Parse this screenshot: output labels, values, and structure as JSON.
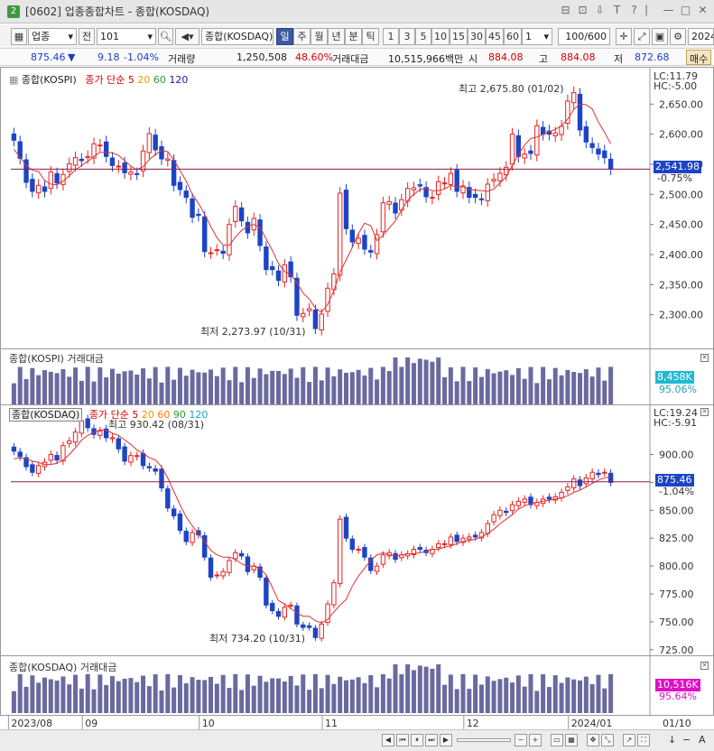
{
  "window": {
    "number": "2",
    "title": "[0602] 업종종합차트 - 종합(KOSDAQ)",
    "icons": [
      "window-icon",
      "window-icon",
      "save-icon",
      "text-icon",
      "help-icon",
      "pin-icon",
      "minimize-icon",
      "restore-icon",
      "close-icon"
    ]
  },
  "toolbar": {
    "market_select": "업종",
    "search_prefix": "전",
    "code_value": "101",
    "market_name": "종합(KOSDAQ)",
    "periods": [
      "일",
      "주",
      "월",
      "년",
      "분",
      "틱"
    ],
    "active_period": "일",
    "intervals": [
      "1",
      "3",
      "5",
      "10",
      "15",
      "30",
      "45",
      "60"
    ],
    "interval_value": "1",
    "bar_count": "100/600",
    "date_value": "2024"
  },
  "quote": {
    "price": "875.46",
    "change_arrow": "▼",
    "change": "9.18",
    "change_pct": "-1.04%",
    "volume_label": "거래량",
    "volume": "1,250,508",
    "volume_pct": "48.60%",
    "amount_label": "거래대금",
    "amount": "10,515,966백만",
    "open_label": "시",
    "open": "884.08",
    "high_label": "고",
    "high": "884.08",
    "low_label": "저",
    "low": "872.68",
    "right_btn": "매수"
  },
  "panes": {
    "kospi": {
      "title": "종합(KOSPI)",
      "ma_label": "종가 단순",
      "ma_periods": [
        "5",
        "20",
        "60",
        "120"
      ],
      "lc": "LC:11.79",
      "hc": "HC:-5.00",
      "high_note": "최고 2,675.80 (01/02)",
      "low_note": "최저 2,273.97 (10/31)",
      "current": "2,541.98",
      "current_pct": "-0.75%"
    },
    "kospi_vol": {
      "title": "종합(KOSPI) 거래대금",
      "value": "8,458K",
      "pct": "95.06%"
    },
    "kosdaq": {
      "title": "종합(KOSDAQ)",
      "ma_label": "종가 단순",
      "ma_periods": [
        "5",
        "20",
        "60",
        "90",
        "120"
      ],
      "lc": "LC:19.24",
      "hc": "HC:-5.91",
      "high_note": "최고 930.42 (08/31)",
      "low_note": "최저 734.20 (10/31)",
      "current": "875.46",
      "current_pct": "-1.04%"
    },
    "kosdaq_vol": {
      "title": "종합(KOSDAQ) 거래대금",
      "value": "10,516K",
      "pct": "95.64%"
    }
  },
  "axes": {
    "kospi_ticks": [
      "2,650.00",
      "2,600.00",
      "2,550.00",
      "2,500.00",
      "2,450.00",
      "2,400.00",
      "2,350.00",
      "2,300.00"
    ],
    "kosdaq_ticks": [
      "900.00",
      "875.00",
      "850.00",
      "825.00",
      "800.00",
      "775.00",
      "750.00",
      "725.00"
    ],
    "date_ticks": [
      "2023/08",
      "09",
      "10",
      "11",
      "12",
      "2024/01"
    ],
    "date_right": "01/10"
  },
  "colors": {
    "up": "#e8231e",
    "down": "#1c44c6",
    "ma5": "#e03030",
    "ma20": "#f0b000",
    "ma60": "#2e9a2e",
    "ma90": "#ff7a00",
    "ma120": "#1a1aa0",
    "volume": "#6a6aa0",
    "hline": "#8b1a4a"
  },
  "chart_data": [
    {
      "type": "candlestick",
      "name": "종합(KOSPI)",
      "ylim": [
        2250,
        2700
      ],
      "x": [
        "2023-08-16",
        "2023-08-17",
        "2023-08-18",
        "2023-08-21",
        "2023-08-22",
        "2023-08-23",
        "2023-08-24",
        "2023-08-25",
        "2023-08-28",
        "2023-08-29",
        "2023-08-30",
        "2023-08-31",
        "2023-09-01",
        "2023-09-04",
        "2023-09-05",
        "2023-09-06",
        "2023-09-07",
        "2023-09-08",
        "2023-09-11",
        "2023-09-12",
        "2023-09-13",
        "2023-09-14",
        "2023-09-15",
        "2023-09-18",
        "2023-09-19",
        "2023-09-20",
        "2023-09-21",
        "2023-09-22",
        "2023-09-25",
        "2023-09-26",
        "2023-09-27",
        "2023-10-04",
        "2023-10-05",
        "2023-10-06",
        "2023-10-10",
        "2023-10-11",
        "2023-10-12",
        "2023-10-13",
        "2023-10-16",
        "2023-10-17",
        "2023-10-18",
        "2023-10-19",
        "2023-10-20",
        "2023-10-23",
        "2023-10-24",
        "2023-10-25",
        "2023-10-26",
        "2023-10-27",
        "2023-10-30",
        "2023-10-31",
        "2023-11-01",
        "2023-11-02",
        "2023-11-03",
        "2023-11-06",
        "2023-11-07",
        "2023-11-08",
        "2023-11-09",
        "2023-11-10",
        "2023-11-13",
        "2023-11-14",
        "2023-11-15",
        "2023-11-16",
        "2023-11-17",
        "2023-11-20",
        "2023-11-21",
        "2023-11-22",
        "2023-11-23",
        "2023-11-24",
        "2023-11-27",
        "2023-11-28",
        "2023-11-29",
        "2023-11-30",
        "2023-12-01",
        "2023-12-04",
        "2023-12-05",
        "2023-12-06",
        "2023-12-07",
        "2023-12-08",
        "2023-12-11",
        "2023-12-12",
        "2023-12-13",
        "2023-12-14",
        "2023-12-15",
        "2023-12-18",
        "2023-12-19",
        "2023-12-20",
        "2023-12-21",
        "2023-12-22",
        "2023-12-26",
        "2023-12-27",
        "2023-12-28",
        "2024-01-02",
        "2024-01-03",
        "2024-01-04",
        "2024-01-05",
        "2024-01-08",
        "2024-01-09",
        "2024-01-10"
      ],
      "close": [
        2590,
        2560,
        2520,
        2505,
        2515,
        2505,
        2537,
        2519,
        2533,
        2551,
        2561,
        2556,
        2563,
        2584,
        2582,
        2563,
        2548,
        2547,
        2536,
        2537,
        2534,
        2572,
        2601,
        2574,
        2559,
        2559,
        2515,
        2508,
        2495,
        2462,
        2465,
        2405,
        2403,
        2408,
        2402,
        2450,
        2480,
        2456,
        2436,
        2460,
        2415,
        2375,
        2375,
        2357,
        2383,
        2363,
        2299,
        2302,
        2310,
        2277,
        2301,
        2344,
        2368,
        2502,
        2443,
        2421,
        2427,
        2409,
        2404,
        2433,
        2486,
        2488,
        2469,
        2491,
        2510,
        2511,
        2514,
        2496,
        2495,
        2521,
        2519,
        2535,
        2505,
        2514,
        2495,
        2495,
        2492,
        2517,
        2525,
        2535,
        2545,
        2600,
        2563,
        2567,
        2568,
        2614,
        2600,
        2600,
        2602,
        2613,
        2655,
        2669,
        2607,
        2587,
        2578,
        2567,
        2561,
        2542
      ],
      "ma5": [
        2575,
        2562,
        2548,
        2540,
        2538,
        2523,
        2517,
        2516,
        2522,
        2531,
        2541,
        2548,
        2555,
        2563,
        2570,
        2570,
        2569,
        2565,
        2556,
        2547,
        2541,
        2546,
        2558,
        2566,
        2573,
        2571,
        2557,
        2540,
        2522,
        2500,
        2485,
        2467,
        2447,
        2428,
        2416,
        2415,
        2429,
        2440,
        2447,
        2450,
        2445,
        2426,
        2407,
        2385,
        2372,
        2367,
        2353,
        2336,
        2326,
        2311,
        2304,
        2317,
        2340,
        2371,
        2391,
        2412,
        2435,
        2452,
        2448,
        2423,
        2432,
        2444,
        2456,
        2474,
        2490,
        2500,
        2508,
        2510,
        2506,
        2506,
        2509,
        2515,
        2512,
        2513,
        2508,
        2507,
        2506,
        2505,
        2509,
        2519,
        2529,
        2548,
        2566,
        2582,
        2593,
        2595,
        2600,
        2604,
        2608,
        2614,
        2625,
        2641,
        2650,
        2649,
        2642,
        2620,
        2603,
        2584
      ]
    },
    {
      "type": "candlestick",
      "name": "종합(KOSDAQ)",
      "ylim": [
        720,
        940
      ],
      "x_same_as": "종합(KOSPI)",
      "close": [
        903,
        898,
        889,
        884,
        890,
        893,
        900,
        895,
        908,
        912,
        920,
        930,
        924,
        918,
        921,
        915,
        915,
        905,
        894,
        899,
        899,
        890,
        888,
        885,
        870,
        852,
        845,
        832,
        822,
        830,
        828,
        808,
        790,
        792,
        795,
        805,
        812,
        809,
        795,
        800,
        790,
        765,
        760,
        755,
        763,
        765,
        748,
        745,
        745,
        736,
        748,
        766,
        785,
        842,
        825,
        815,
        815,
        808,
        796,
        800,
        810,
        812,
        806,
        810,
        811,
        815,
        815,
        812,
        815,
        820,
        820,
        826,
        822,
        825,
        826,
        826,
        830,
        838,
        846,
        850,
        848,
        855,
        858,
        860,
        855,
        857,
        860,
        860,
        862,
        866,
        871,
        878,
        872,
        879,
        884,
        882,
        884,
        875
      ],
      "ma5": [
        896,
        897,
        896,
        894,
        893,
        891,
        891,
        892,
        895,
        900,
        906,
        913,
        917,
        920,
        922,
        922,
        919,
        917,
        913,
        909,
        904,
        901,
        897,
        895,
        889,
        879,
        867,
        855,
        844,
        836,
        829,
        822,
        814,
        810,
        808,
        808,
        806,
        802,
        800,
        800,
        798,
        792,
        781,
        769,
        766,
        762,
        758,
        755,
        755,
        751,
        749,
        752,
        759,
        765,
        770,
        782,
        791,
        798,
        805,
        810,
        812,
        810,
        809,
        810,
        811,
        811,
        812,
        813,
        815,
        815,
        817,
        818,
        820,
        822,
        823,
        824,
        826,
        829,
        833,
        838,
        842,
        846,
        851,
        854,
        856,
        857,
        858,
        859,
        860,
        861,
        863,
        866,
        868,
        871,
        874,
        877,
        879,
        880
      ]
    }
  ]
}
